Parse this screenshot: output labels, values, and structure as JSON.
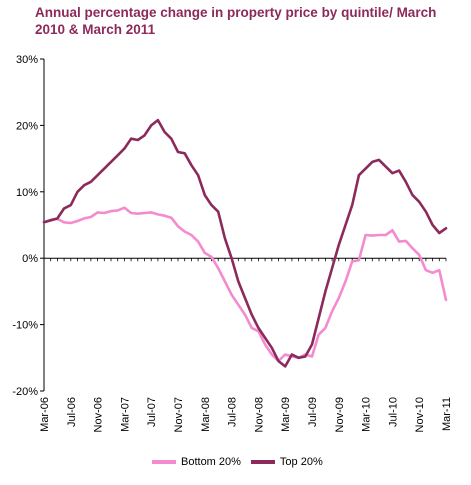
{
  "chart_title": "Annual percentage change in property price by quintile/ March 2010 & March 2011",
  "colors": {
    "title": "#8b2a5b",
    "bottom_20": "#f48bcf",
    "top_20": "#8b2a5b",
    "axis": "#000000",
    "background": "#ffffff"
  },
  "chart_data": {
    "type": "line",
    "title": "Annual percentage change in property price by quintile/ March 2010 & March 2011",
    "xlabel": "",
    "ylabel": "",
    "ylim": [
      -20,
      30
    ],
    "yticks": [
      -20,
      -10,
      0,
      10,
      20,
      30
    ],
    "ytick_labels": [
      "-20%",
      "-10%",
      "0%",
      "10%",
      "20%",
      "30%"
    ],
    "grid": false,
    "legend_position": "bottom",
    "x": [
      "Mar-06",
      "Apr-06",
      "May-06",
      "Jun-06",
      "Jul-06",
      "Aug-06",
      "Sep-06",
      "Oct-06",
      "Nov-06",
      "Dec-06",
      "Jan-07",
      "Feb-07",
      "Mar-07",
      "Apr-07",
      "May-07",
      "Jun-07",
      "Jul-07",
      "Aug-07",
      "Sep-07",
      "Oct-07",
      "Nov-07",
      "Dec-07",
      "Jan-08",
      "Feb-08",
      "Mar-08",
      "Apr-08",
      "May-08",
      "Jun-08",
      "Jul-08",
      "Aug-08",
      "Sep-08",
      "Oct-08",
      "Nov-08",
      "Dec-08",
      "Jan-09",
      "Feb-09",
      "Mar-09",
      "Apr-09",
      "May-09",
      "Jun-09",
      "Jul-09",
      "Aug-09",
      "Sep-09",
      "Oct-09",
      "Nov-09",
      "Dec-09",
      "Jan-10",
      "Feb-10",
      "Mar-10",
      "Apr-10",
      "May-10",
      "Jun-10",
      "Jul-10",
      "Aug-10",
      "Sep-10",
      "Oct-10",
      "Nov-10",
      "Dec-10",
      "Jan-11",
      "Feb-11",
      "Mar-11"
    ],
    "x_tick_labels": [
      "Mar-06",
      "Jul-06",
      "Nov-06",
      "Mar-07",
      "Jul-07",
      "Nov-07",
      "Mar-08",
      "Jul-08",
      "Nov-08",
      "Mar-09",
      "Jul-09",
      "Nov-09",
      "Mar-10",
      "Jul-10",
      "Nov-10",
      "Mar-11"
    ],
    "series": [
      {
        "name": "Bottom 20%",
        "color": "#f48bcf",
        "values": [
          5.4,
          5.8,
          5.9,
          5.4,
          5.3,
          5.6,
          6.0,
          6.2,
          6.9,
          6.8,
          7.1,
          7.2,
          7.6,
          6.8,
          6.7,
          6.8,
          6.9,
          6.6,
          6.4,
          6.1,
          4.8,
          4.0,
          3.5,
          2.5,
          0.8,
          0.2,
          -1.5,
          -3.5,
          -5.5,
          -7.0,
          -8.5,
          -10.5,
          -11.0,
          -13.0,
          -14.5,
          -15.5,
          -14.5,
          -14.8,
          -15.0,
          -14.5,
          -14.8,
          -11.5,
          -10.5,
          -8.0,
          -6.0,
          -3.5,
          -0.5,
          -0.3,
          3.5,
          3.4,
          3.5,
          3.5,
          4.2,
          2.5,
          2.6,
          1.5,
          0.5,
          -1.8,
          -2.2,
          -1.8,
          -6.3
        ]
      },
      {
        "name": "Top 20%",
        "color": "#8b2a5b",
        "values": [
          5.4,
          5.7,
          6.0,
          7.5,
          8.0,
          10.0,
          11.0,
          11.5,
          12.5,
          13.5,
          14.5,
          15.5,
          16.5,
          18.0,
          17.8,
          18.5,
          20.0,
          20.8,
          19.0,
          18.0,
          16.0,
          15.8,
          14.0,
          12.5,
          9.5,
          8.0,
          7.0,
          3.0,
          0.0,
          -3.5,
          -6.0,
          -8.5,
          -10.5,
          -12.0,
          -13.5,
          -15.5,
          -16.3,
          -14.5,
          -15.0,
          -14.8,
          -13.0,
          -9.0,
          -5.0,
          -1.5,
          2.0,
          5.0,
          8.0,
          12.5,
          13.5,
          14.5,
          14.8,
          13.8,
          12.8,
          13.2,
          11.5,
          9.5,
          8.5,
          7.0,
          5.0,
          3.8,
          4.5
        ]
      }
    ]
  }
}
